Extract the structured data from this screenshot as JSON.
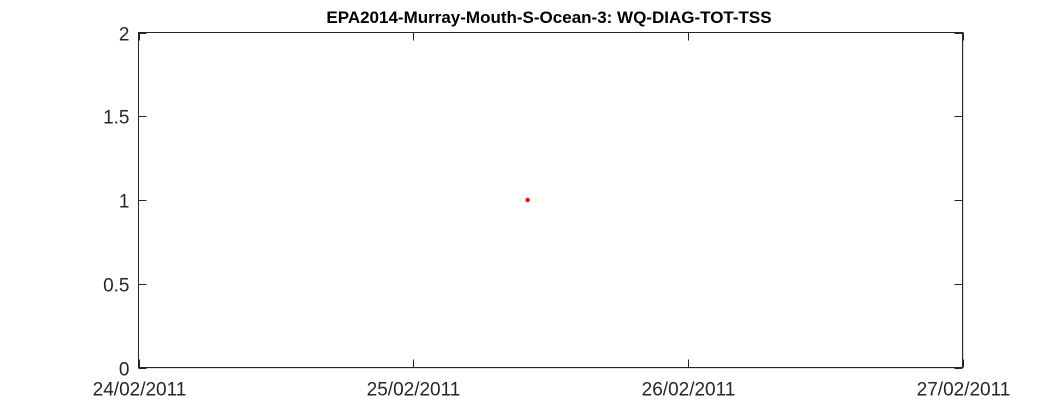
{
  "chart_data": {
    "type": "scatter",
    "title": "EPA2014-Murray-Mouth-S-Ocean-3: WQ-DIAG-TOT-TSS",
    "xlabel": "",
    "ylabel": "",
    "x_axis_type": "date",
    "xlim": [
      "2011-02-24",
      "2011-02-27"
    ],
    "ylim": [
      0,
      2
    ],
    "x_ticks": [
      {
        "value": "2011-02-24",
        "label": "24/02/2011"
      },
      {
        "value": "2011-02-25",
        "label": "25/02/2011"
      },
      {
        "value": "2011-02-26",
        "label": "26/02/2011"
      },
      {
        "value": "2011-02-27",
        "label": "27/02/2011"
      }
    ],
    "y_ticks": [
      {
        "value": 0,
        "label": "0"
      },
      {
        "value": 0.5,
        "label": "0.5"
      },
      {
        "value": 1,
        "label": "1"
      },
      {
        "value": 1.5,
        "label": "1.5"
      },
      {
        "value": 2,
        "label": "2"
      }
    ],
    "grid": true,
    "box": true,
    "series": [
      {
        "color": "#ff0000",
        "marker": "dot",
        "points": [
          {
            "x": "2011-02-25T10:00",
            "y": 1
          }
        ]
      }
    ]
  }
}
